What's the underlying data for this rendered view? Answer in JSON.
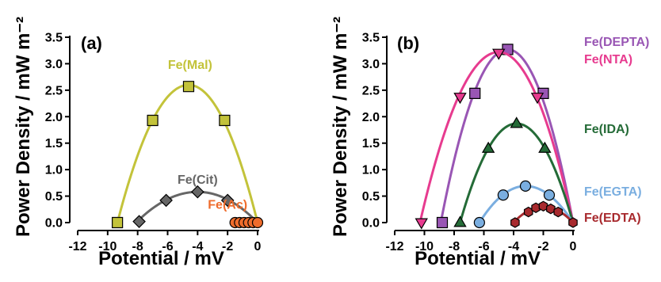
{
  "chart_data": [
    {
      "type": "scatter",
      "panel_label": "(a)",
      "xlabel": "Potential / mV",
      "ylabel": "Power Density / mW m⁻²",
      "xlim": [
        -12,
        0
      ],
      "ylim": [
        0,
        3.5
      ],
      "xticks": [
        -12,
        -10,
        -8,
        -6,
        -4,
        -2,
        0
      ],
      "yticks": [
        0.0,
        0.5,
        1.0,
        1.5,
        2.0,
        2.5,
        3.0,
        3.5
      ],
      "yticklabels": [
        "0.0",
        "0.5",
        "1.0",
        "1.5",
        "2.0",
        "2.5",
        "3.0",
        "3.5"
      ],
      "grid": false,
      "series": [
        {
          "name": "Fe(Mal)",
          "marker": "square",
          "color": "#c3c33a",
          "label_pos": [
            -4.5,
            2.9
          ],
          "fit_x": [
            -9.35,
            0.0
          ],
          "fit_peak": [
            -4.6,
            2.6
          ],
          "points": [
            [
              -9.35,
              0.0
            ],
            [
              -7.0,
              1.93
            ],
            [
              -4.6,
              2.57
            ],
            [
              -2.2,
              1.93
            ]
          ]
        },
        {
          "name": "Fe(Cit)",
          "marker": "diamond",
          "color": "#666666",
          "label_pos": [
            -4.0,
            0.73
          ],
          "fit_x": [
            -8.1,
            0.0
          ],
          "fit_peak": [
            -4.0,
            0.58
          ],
          "points": [
            [
              -7.9,
              0.02
            ],
            [
              -6.1,
              0.42
            ],
            [
              -4.0,
              0.58
            ],
            [
              -2.0,
              0.42
            ]
          ]
        },
        {
          "name": "Fe(Ac)",
          "marker": "circle",
          "color": "#ef6c2c",
          "label_pos": [
            -2.0,
            0.26
          ],
          "fit_x": null,
          "fit_peak": null,
          "points": [
            [
              -1.5,
              0.0
            ],
            [
              -1.2,
              0.0
            ],
            [
              -0.9,
              0.0
            ],
            [
              -0.6,
              0.0
            ],
            [
              -0.3,
              0.0
            ],
            [
              0.0,
              0.0
            ]
          ]
        }
      ]
    },
    {
      "type": "scatter",
      "panel_label": "(b)",
      "xlabel": "Potential / mV",
      "ylabel": "Power Density / mW m⁻²",
      "xlim": [
        -12,
        0
      ],
      "ylim": [
        0,
        3.5
      ],
      "xticks": [
        -12,
        -10,
        -8,
        -6,
        -4,
        -2,
        0
      ],
      "yticks": [
        0.0,
        0.5,
        1.0,
        1.5,
        2.0,
        2.5,
        3.0,
        3.5
      ],
      "yticklabels": [
        "0.0",
        "0.5",
        "1.0",
        "1.5",
        "2.0",
        "2.5",
        "3.0",
        "3.5"
      ],
      "grid": false,
      "series": [
        {
          "name": "Fe(DEPTA)",
          "marker": "square",
          "color": "#9956b4",
          "fit_x": [
            -8.9,
            0.0
          ],
          "fit_peak": [
            -4.4,
            3.27
          ],
          "points": [
            [
              -8.8,
              0.0
            ],
            [
              -6.6,
              2.44
            ],
            [
              -4.4,
              3.27
            ],
            [
              -2.0,
              2.44
            ]
          ]
        },
        {
          "name": "Fe(NTA)",
          "marker": "triangle-down",
          "color": "#e73b8f",
          "fit_x": [
            -10.3,
            0.0
          ],
          "fit_peak": [
            -5.0,
            3.22
          ],
          "points": [
            [
              -10.2,
              0.0
            ],
            [
              -7.6,
              2.37
            ],
            [
              -5.0,
              3.2
            ],
            [
              -2.4,
              2.37
            ]
          ]
        },
        {
          "name": "Fe(IDA)",
          "marker": "triangle-up",
          "color": "#246b37",
          "fit_x": [
            -7.6,
            0.0
          ],
          "fit_peak": [
            -3.8,
            1.87
          ],
          "points": [
            [
              -7.6,
              0.0
            ],
            [
              -5.7,
              1.4
            ],
            [
              -3.8,
              1.87
            ],
            [
              -1.9,
              1.4
            ]
          ]
        },
        {
          "name": "Fe(EGTA)",
          "marker": "circle",
          "color": "#7aaee0",
          "fit_x": [
            -6.3,
            0.0
          ],
          "fit_peak": [
            -3.2,
            0.69
          ],
          "points": [
            [
              -6.3,
              0.0
            ],
            [
              -4.7,
              0.52
            ],
            [
              -3.2,
              0.69
            ],
            [
              -1.6,
              0.52
            ]
          ]
        },
        {
          "name": "Fe(EDTA)",
          "marker": "hexagon",
          "color": "#a82a2e",
          "fit_x": [
            -4.0,
            0.0
          ],
          "fit_peak": [
            -2.0,
            0.3
          ],
          "points": [
            [
              -3.9,
              0.0
            ],
            [
              -3.0,
              0.2
            ],
            [
              -2.5,
              0.28
            ],
            [
              -2.0,
              0.31
            ],
            [
              -1.5,
              0.26
            ],
            [
              -1.0,
              0.2
            ],
            [
              0.0,
              0.0
            ]
          ]
        }
      ]
    }
  ]
}
